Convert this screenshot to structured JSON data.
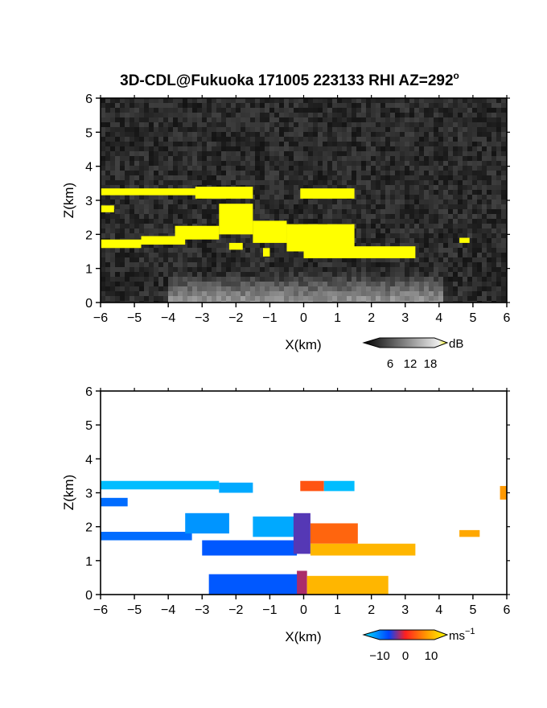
{
  "title": "3D-CDL@Fukuoka 171005 223133 RHI AZ=292",
  "title_degree_mark": "o",
  "chart_data": [
    {
      "type": "heatmap",
      "name": "intensity-panel",
      "xlabel": "X(km)",
      "ylabel": "Z(km)",
      "xlim": [
        -6,
        6
      ],
      "ylim": [
        0,
        6
      ],
      "xticks": [
        "-6",
        "-5",
        "-4",
        "-3",
        "-2",
        "-1",
        "0",
        "1",
        "2",
        "3",
        "4",
        "5",
        "6"
      ],
      "yticks": [
        "0",
        "1",
        "2",
        "3",
        "4",
        "5",
        "6"
      ],
      "background": "#1c1c1c",
      "highlight_color": "#ffff00",
      "colorbar": {
        "unit": "dB",
        "ticks": [
          "6",
          "12",
          "18"
        ],
        "range": [
          0,
          20
        ]
      },
      "features": [
        {
          "label": "layer",
          "x": [
            -6.0,
            -2.5
          ],
          "z": [
            3.15,
            3.35
          ],
          "value": 19
        },
        {
          "label": "layer",
          "x": [
            -3.2,
            -1.5
          ],
          "z": [
            3.05,
            3.4
          ],
          "value": 19
        },
        {
          "label": "layer",
          "x": [
            -6.0,
            -5.6
          ],
          "z": [
            2.65,
            2.85
          ],
          "value": 19
        },
        {
          "label": "layer",
          "x": [
            -6.0,
            -4.8
          ],
          "z": [
            1.6,
            1.85
          ],
          "value": 19
        },
        {
          "label": "layer",
          "x": [
            -4.8,
            -3.5
          ],
          "z": [
            1.7,
            1.95
          ],
          "value": 19
        },
        {
          "label": "layer",
          "x": [
            -3.8,
            -2.5
          ],
          "z": [
            1.85,
            2.25
          ],
          "value": 19
        },
        {
          "label": "layer",
          "x": [
            -2.5,
            -1.5
          ],
          "z": [
            2.0,
            2.9
          ],
          "value": 19
        },
        {
          "label": "layer",
          "x": [
            -1.5,
            -0.5
          ],
          "z": [
            1.75,
            2.4
          ],
          "value": 19
        },
        {
          "label": "layer",
          "x": [
            -0.5,
            1.5
          ],
          "z": [
            1.5,
            2.3
          ],
          "value": 19
        },
        {
          "label": "layer",
          "x": [
            0.0,
            3.3
          ],
          "z": [
            1.3,
            1.65
          ],
          "value": 19
        },
        {
          "label": "layer",
          "x": [
            -1.2,
            -1.0
          ],
          "z": [
            1.35,
            1.6
          ],
          "value": 19
        },
        {
          "label": "layer",
          "x": [
            -2.2,
            -1.8
          ],
          "z": [
            1.55,
            1.75
          ],
          "value": 19
        },
        {
          "label": "layer",
          "x": [
            -0.1,
            1.5
          ],
          "z": [
            3.05,
            3.35
          ],
          "value": 19
        },
        {
          "label": "layer",
          "x": [
            4.6,
            4.9
          ],
          "z": [
            1.75,
            1.9
          ],
          "value": 17
        }
      ]
    },
    {
      "type": "heatmap",
      "name": "velocity-panel",
      "xlabel": "X(km)",
      "ylabel": "Z(km)",
      "xlim": [
        -6,
        6
      ],
      "ylim": [
        0,
        6
      ],
      "xticks": [
        "-6",
        "-5",
        "-4",
        "-3",
        "-2",
        "-1",
        "0",
        "1",
        "2",
        "3",
        "4",
        "5",
        "6"
      ],
      "yticks": [
        "0",
        "1",
        "2",
        "3",
        "4",
        "5",
        "6"
      ],
      "colorbar": {
        "unit": "ms",
        "unit_exponent": "−1",
        "ticks": [
          "−10",
          "0",
          "10"
        ],
        "range": [
          -14,
          14
        ]
      },
      "features": [
        {
          "label": "layer",
          "x": [
            -6.0,
            -2.5
          ],
          "z": [
            3.1,
            3.35
          ],
          "value": -12
        },
        {
          "label": "layer",
          "x": [
            -2.5,
            -1.5
          ],
          "z": [
            3.0,
            3.3
          ],
          "value": -11
        },
        {
          "label": "layer",
          "x": [
            -6.0,
            -5.2
          ],
          "z": [
            2.6,
            2.85
          ],
          "value": -8
        },
        {
          "label": "layer",
          "x": [
            -6.0,
            -3.3
          ],
          "z": [
            1.6,
            1.85
          ],
          "value": -8
        },
        {
          "label": "layer",
          "x": [
            -3.5,
            -2.2
          ],
          "z": [
            1.8,
            2.4
          ],
          "value": -10
        },
        {
          "label": "layer",
          "x": [
            -1.5,
            -0.2
          ],
          "z": [
            1.7,
            2.3
          ],
          "value": -11
        },
        {
          "label": "layer",
          "x": [
            -3.0,
            -0.2
          ],
          "z": [
            1.15,
            1.6
          ],
          "value": -7
        },
        {
          "label": "layer",
          "x": [
            -0.3,
            0.2
          ],
          "z": [
            1.2,
            2.4
          ],
          "value": -4
        },
        {
          "label": "layer",
          "x": [
            0.2,
            1.6
          ],
          "z": [
            1.5,
            2.1
          ],
          "value": 4
        },
        {
          "label": "layer",
          "x": [
            0.2,
            3.3
          ],
          "z": [
            1.15,
            1.5
          ],
          "value": 9
        },
        {
          "label": "layer",
          "x": [
            -2.8,
            -0.1
          ],
          "z": [
            0.0,
            0.6
          ],
          "value": -7
        },
        {
          "label": "layer",
          "x": [
            -0.2,
            0.1
          ],
          "z": [
            0.0,
            0.7
          ],
          "value": -2
        },
        {
          "label": "layer",
          "x": [
            0.1,
            2.5
          ],
          "z": [
            0.0,
            0.55
          ],
          "value": 9
        },
        {
          "label": "layer",
          "x": [
            -0.1,
            0.6
          ],
          "z": [
            3.05,
            3.35
          ],
          "value": 3
        },
        {
          "label": "layer",
          "x": [
            0.6,
            1.5
          ],
          "z": [
            3.05,
            3.35
          ],
          "value": -12
        },
        {
          "label": "layer",
          "x": [
            5.8,
            6.0
          ],
          "z": [
            2.8,
            3.2
          ],
          "value": 7
        },
        {
          "label": "layer",
          "x": [
            4.6,
            5.2
          ],
          "z": [
            1.7,
            1.9
          ],
          "value": 8
        }
      ]
    }
  ]
}
